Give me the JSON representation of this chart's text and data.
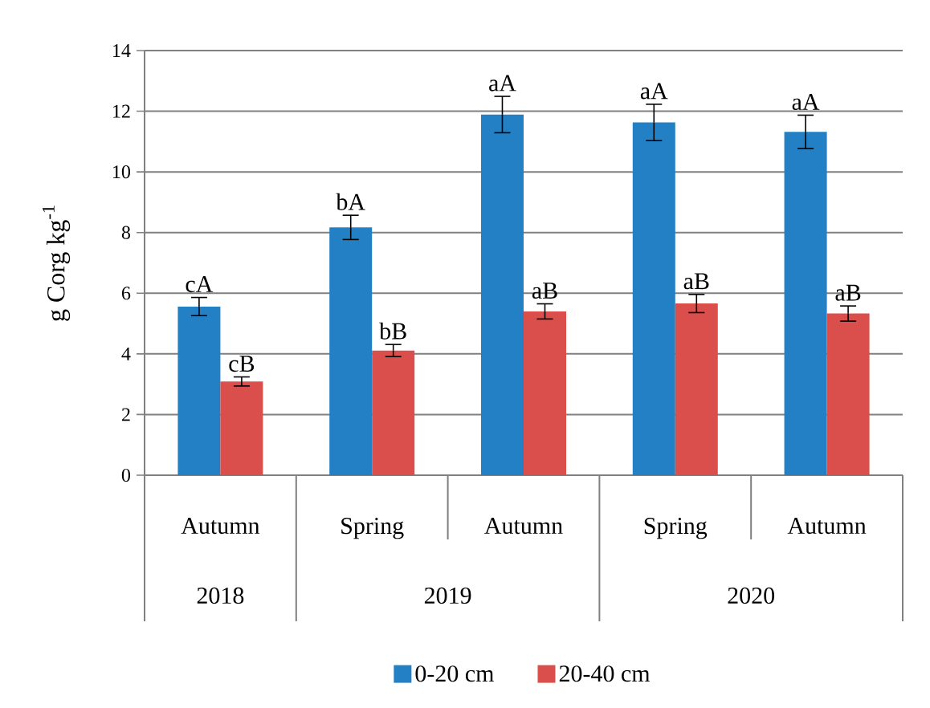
{
  "chart_data": {
    "type": "bar",
    "ylabel": "g Corg  kg$^{-1}$",
    "categories": [
      "Autumn",
      "Spring",
      "Autumn",
      "Spring",
      "Autumn"
    ],
    "annotations": [
      "2018",
      "2019",
      "2020"
    ],
    "series": [
      {
        "name": "0-20 cm",
        "color": "#2380c4",
        "values": [
          5.56,
          8.17,
          11.89,
          11.63,
          11.32
        ],
        "errors": [
          0.3,
          0.4,
          0.6,
          0.6,
          0.55
        ],
        "value_labels": [
          "cA",
          "bA",
          "aA",
          "aA",
          "aA"
        ]
      },
      {
        "name": "20-40 cm",
        "color": "#da4f4b",
        "values": [
          3.09,
          4.11,
          5.4,
          5.66,
          5.33
        ],
        "errors": [
          0.15,
          0.2,
          0.25,
          0.3,
          0.25
        ],
        "value_labels": [
          "cB",
          "bB",
          "aB",
          "aB",
          "aB"
        ]
      }
    ],
    "ylim": [
      0,
      14
    ],
    "yticks": [
      0,
      2,
      4,
      6,
      8,
      10,
      12,
      14
    ],
    "grid": "y",
    "legend": "bottom"
  }
}
